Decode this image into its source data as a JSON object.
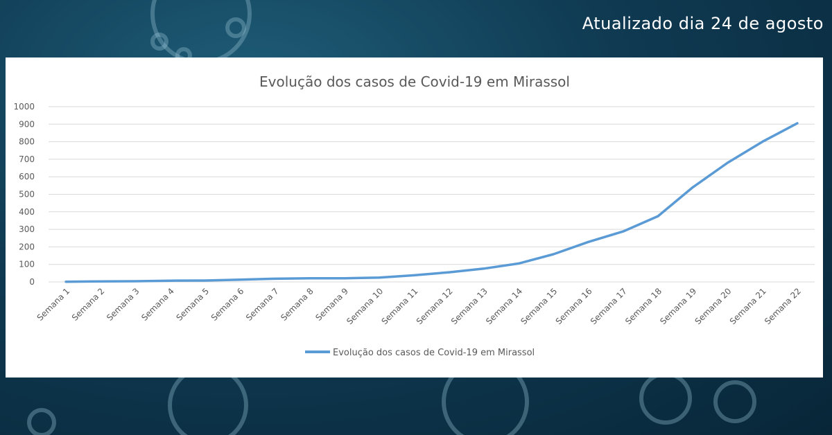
{
  "header": {
    "update_label": "Atualizado dia 24 de agosto"
  },
  "colors": {
    "line": "#5b9bd5",
    "grid": "#d9d9d9",
    "axis_text": "#595959",
    "background": "#0f3a52"
  },
  "chart_data": {
    "type": "line",
    "title": "Evolução dos casos de Covid-19 em Mirassol",
    "xlabel": "",
    "ylabel": "",
    "ylim": [
      0,
      1000
    ],
    "yticks": [
      "0",
      "100",
      "200",
      "300",
      "400",
      "500",
      "600",
      "700",
      "800",
      "900",
      "1000"
    ],
    "grid": true,
    "legend_position": "bottom",
    "categories": [
      "Semana 1",
      "Semana 2",
      "Semana 3",
      "Semana 4",
      "Semana 5",
      "Semana 6",
      "Semana 7",
      "Semana 8",
      "Semana 9",
      "Semana 10",
      "Semana 11",
      "Semana 12",
      "Semana 13",
      "Semana 14",
      "Semana 15",
      "Semana 16",
      "Semana 17",
      "Semana 18",
      "Semana 19",
      "Semana 20",
      "Semana 21",
      "Semana 22"
    ],
    "series": [
      {
        "name": "Evolução dos casos de Covid-19 em Mirassol",
        "values": [
          1,
          3,
          4,
          7,
          8,
          13,
          18,
          21,
          21,
          25,
          38,
          55,
          76,
          105,
          158,
          228,
          288,
          375,
          540,
          680,
          800,
          905
        ]
      }
    ]
  }
}
